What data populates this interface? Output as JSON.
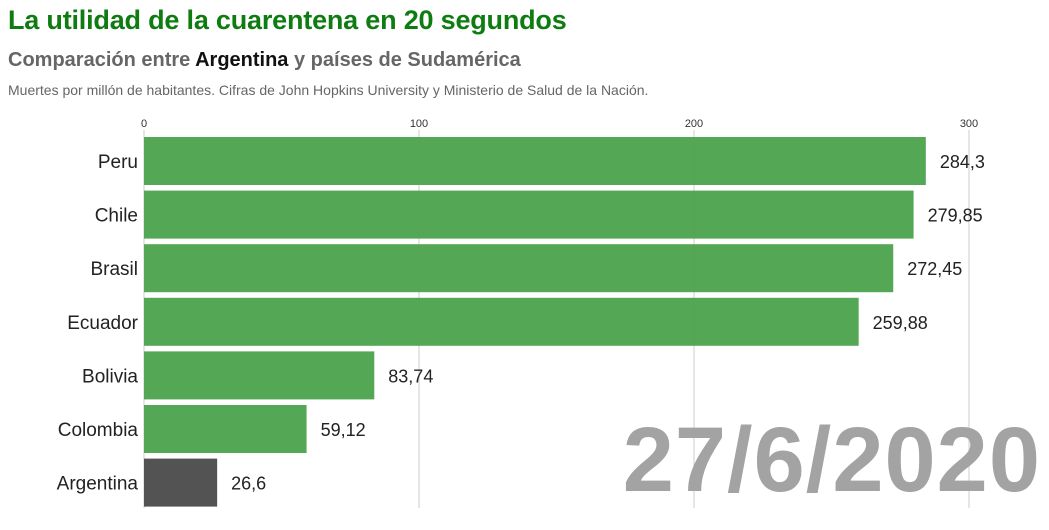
{
  "header": {
    "title": "La utilidad de la cuarentena en 20 segundos",
    "subtitle_pre": "Comparación entre ",
    "subtitle_highlight": "Argentina",
    "subtitle_post": " y países de Sudamérica",
    "note": "Muertes por millón de habitantes. Cifras de John Hopkins University y Ministerio de Salud de la Nación."
  },
  "date_label": "27/6/2020",
  "colors": {
    "title": "#0f7c12",
    "bar_default": "#4ea44f",
    "bar_highlight": "#4d4d4d",
    "gridline": "#cccccc",
    "date": "#a3a3a3"
  },
  "chart_data": {
    "type": "bar",
    "orientation": "horizontal",
    "title": "La utilidad de la cuarentena en 20 segundos",
    "subtitle": "Comparación entre Argentina y países de Sudamérica",
    "xlabel": "",
    "ylabel": "",
    "unit": "Muertes por millón de habitantes",
    "categories": [
      "Peru",
      "Chile",
      "Brasil",
      "Ecuador",
      "Bolivia",
      "Colombia",
      "Argentina"
    ],
    "values": [
      284.3,
      279.85,
      272.45,
      259.88,
      83.74,
      59.12,
      26.6
    ],
    "value_labels": [
      "284,3",
      "279,85",
      "272,45",
      "259,88",
      "83,74",
      "59,12",
      "26,6"
    ],
    "highlight": "Argentina",
    "xlim": [
      0,
      300
    ],
    "x_ticks": [
      0,
      100,
      200,
      300
    ],
    "x_tick_labels": [
      "0",
      "100",
      "200",
      "300"
    ],
    "axis_position": "top",
    "grid": true
  }
}
